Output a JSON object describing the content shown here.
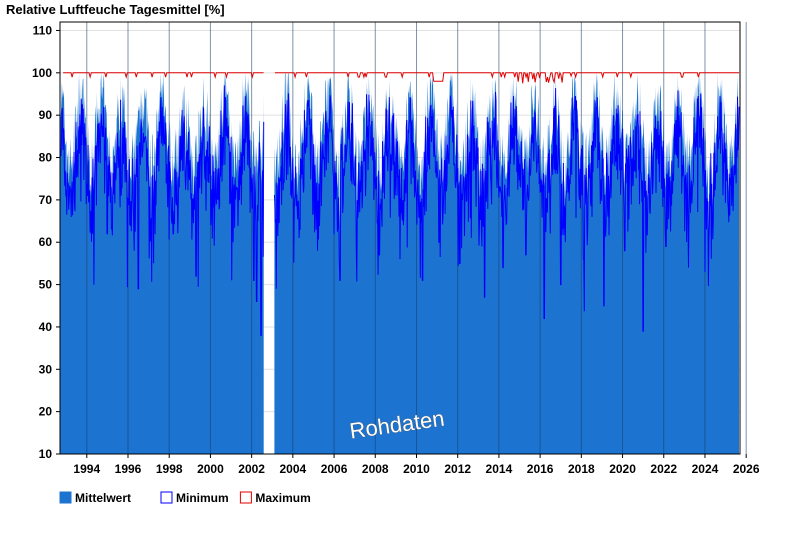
{
  "chart_data": {
    "type": "area",
    "title": "Relative Luftfeuche Tagesmittel [%]",
    "xlabel": "",
    "ylabel": "",
    "xlim": [
      1993.0,
      2026.0
    ],
    "ylim": [
      10,
      112
    ],
    "x_ticks": [
      1994,
      1996,
      1998,
      2000,
      2002,
      2004,
      2006,
      2008,
      2010,
      2012,
      2014,
      2016,
      2018,
      2020,
      2022,
      2024,
      2026
    ],
    "y_ticks": [
      10,
      20,
      30,
      40,
      50,
      60,
      70,
      80,
      90,
      100,
      110
    ],
    "grid": true,
    "gap": [
      2002.9,
      2003.4
    ],
    "legend_position": "bottom-left",
    "series": [
      {
        "name": "Mittelwert",
        "color": "#1c74d0",
        "style": "filled-area"
      },
      {
        "name": "Minimum",
        "color": "#0000ff",
        "style": "line"
      },
      {
        "name": "Maximum",
        "color": "#e00000",
        "style": "line"
      }
    ],
    "minimum_dips": [
      {
        "x": 1995.3,
        "y": 62
      },
      {
        "x": 1996.0,
        "y": 73
      },
      {
        "x": 1996.6,
        "y": 58
      },
      {
        "x": 1996.8,
        "y": 49
      },
      {
        "x": 1997.4,
        "y": 63
      },
      {
        "x": 1998.5,
        "y": 62
      },
      {
        "x": 1999.6,
        "y": 52
      },
      {
        "x": 2000.5,
        "y": 69
      },
      {
        "x": 2001.4,
        "y": 60
      },
      {
        "x": 2002.4,
        "y": 51
      },
      {
        "x": 2002.55,
        "y": 46
      },
      {
        "x": 2002.75,
        "y": 38
      },
      {
        "x": 2003.5,
        "y": 49
      },
      {
        "x": 2004.6,
        "y": 61
      },
      {
        "x": 2005.5,
        "y": 58
      },
      {
        "x": 2006.6,
        "y": 51
      },
      {
        "x": 2007.4,
        "y": 58
      },
      {
        "x": 2008.5,
        "y": 57
      },
      {
        "x": 2009.5,
        "y": 56
      },
      {
        "x": 2010.6,
        "y": 51
      },
      {
        "x": 2011.4,
        "y": 60
      },
      {
        "x": 2012.4,
        "y": 55
      },
      {
        "x": 2013.6,
        "y": 47
      },
      {
        "x": 2014.5,
        "y": 54
      },
      {
        "x": 2015.6,
        "y": 57
      },
      {
        "x": 2016.5,
        "y": 42
      },
      {
        "x": 2017.3,
        "y": 50
      },
      {
        "x": 2018.4,
        "y": 56
      },
      {
        "x": 2019.4,
        "y": 45
      },
      {
        "x": 2020.4,
        "y": 58
      },
      {
        "x": 2021.3,
        "y": 39
      },
      {
        "x": 2022.4,
        "y": 59
      },
      {
        "x": 2023.5,
        "y": 54
      },
      {
        "x": 2024.3,
        "y": 53
      }
    ],
    "annotation": "Rohdaten"
  }
}
